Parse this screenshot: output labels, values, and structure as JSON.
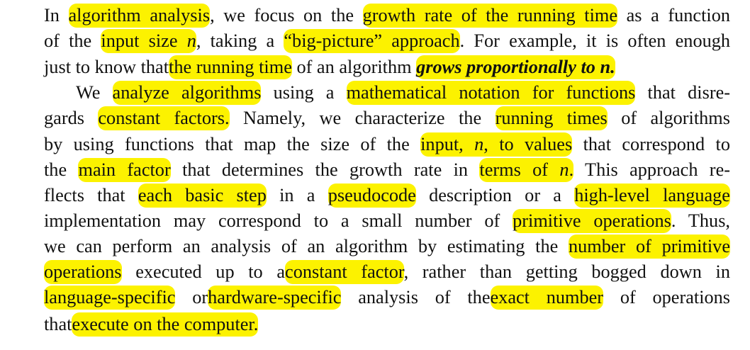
{
  "paragraph_1": {
    "line_1": {
      "t1": "In",
      "h1": "algorithm analysis",
      "t2": ", we focus on the",
      "h2": "growth rate of the running time",
      "t3": "as a function"
    },
    "line_2": {
      "t1": "of the",
      "h1a": "input size ",
      "h1b": "n",
      "t2": ", taking a",
      "h2": "“big-picture” approach",
      "t3": ". For example, it is often enough"
    },
    "line_3": {
      "t1": "just to know that",
      "h1": "the running time",
      "t2": "of an algorithm",
      "h2a": "grows proportionally to ",
      "h2b": "n",
      "h2c": "."
    }
  },
  "paragraph_2": {
    "line_1": {
      "t1": "We",
      "h1": "analyze algorithms",
      "t2": "using a",
      "h2": "mathematical notation for functions",
      "t3": "that disre-"
    },
    "line_2": {
      "t1": "gards",
      "h1": "constant factors.",
      "t2": "Namely, we characterize the",
      "h2": "running times",
      "t3": "of algorithms"
    },
    "line_3": {
      "t1": "by using functions that map the size of the",
      "h1a": "input, ",
      "h1b": "n",
      "h1c": ", to values",
      "t2": "that correspond to"
    },
    "line_4": {
      "t1": "the",
      "h1": "main factor",
      "t2": "that determines the growth rate in",
      "h2a": "terms of ",
      "h2b": "n",
      "h2c": ".",
      "t3": "This approach re-"
    },
    "line_5": {
      "t1": "flects that",
      "h1": "each basic step",
      "t2": "in a",
      "h2": "pseudocode",
      "t3": "description or a",
      "h3": "high-level language"
    },
    "line_6": {
      "t1": "implementation may correspond to a small number of",
      "h1": "primitive operations",
      "t2": ". Thus,"
    },
    "line_7": {
      "t1": "we can perform an analysis of an algorithm by estimating the",
      "h1": "number of primitive"
    },
    "line_8": {
      "h1": "operations",
      "t1": "executed up to a",
      "h2": "constant factor",
      "t2": ", rather than getting bogged down in"
    },
    "line_9": {
      "h1": "language-specific",
      "t1": "or",
      "h2": "hardware-specific",
      "t2": "analysis of the",
      "h3": "exact number",
      "t3": "of operations"
    },
    "line_10": {
      "t1": "that",
      "h1": "execute on the computer."
    }
  },
  "colors": {
    "highlight": "#fcf200",
    "text": "#111111",
    "background": "#ffffff"
  }
}
